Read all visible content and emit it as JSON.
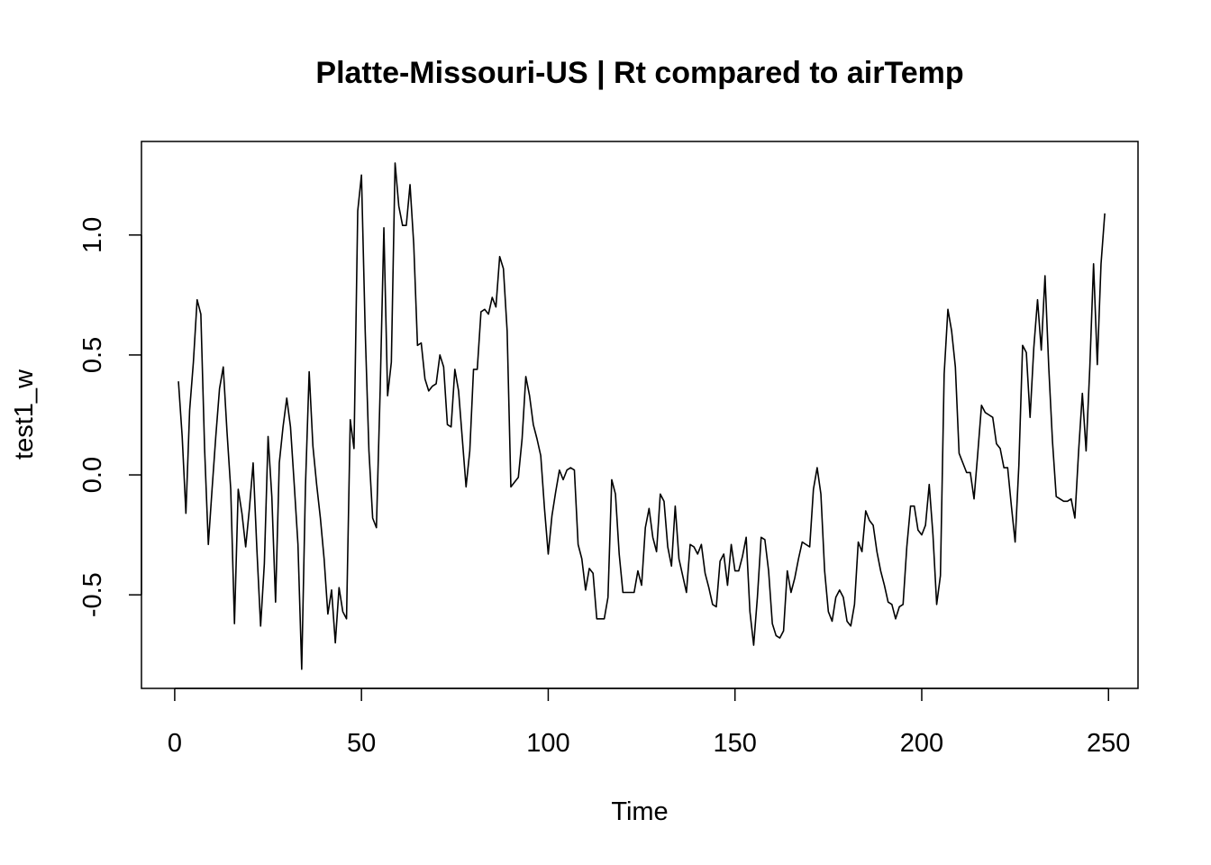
{
  "chart_data": {
    "type": "line",
    "title": "Platte-Missouri-US | Rt compared to airTemp",
    "xlabel": "Time",
    "ylabel": "test1_w",
    "xlim": [
      -8.9,
      257.9
    ],
    "ylim": [
      -0.89,
      1.39
    ],
    "xticks": [
      0,
      50,
      100,
      150,
      200,
      250
    ],
    "yticks": [
      -0.5,
      0.0,
      0.5,
      1.0
    ],
    "xtick_labels": [
      "0",
      "50",
      "100",
      "150",
      "200",
      "250"
    ],
    "ytick_labels": [
      "-0.5",
      "0.0",
      "0.5",
      "1.0"
    ],
    "grid": false,
    "legend": "none",
    "line_color": "#000000",
    "x_start": 1,
    "x_step": 1,
    "series": [
      {
        "values": [
          0.39,
          0.16,
          -0.16,
          0.27,
          0.47,
          0.73,
          0.67,
          0.11,
          -0.29,
          -0.06,
          0.16,
          0.36,
          0.45,
          0.18,
          -0.06,
          -0.62,
          -0.06,
          -0.16,
          -0.3,
          -0.14,
          0.05,
          -0.31,
          -0.63,
          -0.37,
          0.16,
          -0.09,
          -0.53,
          0.05,
          0.2,
          0.32,
          0.2,
          -0.04,
          -0.29,
          -0.81,
          -0.05,
          0.43,
          0.12,
          -0.04,
          -0.18,
          -0.35,
          -0.58,
          -0.48,
          -0.7,
          -0.47,
          -0.57,
          -0.6,
          0.23,
          0.11,
          1.1,
          1.25,
          0.6,
          0.1,
          -0.18,
          -0.22,
          0.35,
          1.03,
          0.33,
          0.47,
          1.3,
          1.12,
          1.04,
          1.04,
          1.21,
          0.96,
          0.54,
          0.55,
          0.4,
          0.35,
          0.37,
          0.38,
          0.5,
          0.45,
          0.21,
          0.2,
          0.44,
          0.35,
          0.15,
          -0.05,
          0.1,
          0.44,
          0.44,
          0.68,
          0.69,
          0.67,
          0.74,
          0.7,
          0.91,
          0.86,
          0.6,
          -0.05,
          -0.03,
          -0.01,
          0.15,
          0.41,
          0.33,
          0.21,
          0.15,
          0.08,
          -0.14,
          -0.33,
          -0.17,
          -0.07,
          0.02,
          -0.02,
          0.02,
          0.03,
          0.02,
          -0.29,
          -0.35,
          -0.48,
          -0.39,
          -0.41,
          -0.6,
          -0.6,
          -0.6,
          -0.51,
          -0.02,
          -0.08,
          -0.33,
          -0.49,
          -0.49,
          -0.49,
          -0.49,
          -0.4,
          -0.46,
          -0.22,
          -0.14,
          -0.26,
          -0.32,
          -0.08,
          -0.11,
          -0.3,
          -0.38,
          -0.13,
          -0.35,
          -0.42,
          -0.49,
          -0.29,
          -0.3,
          -0.33,
          -0.29,
          -0.41,
          -0.47,
          -0.54,
          -0.55,
          -0.36,
          -0.33,
          -0.46,
          -0.29,
          -0.4,
          -0.4,
          -0.34,
          -0.26,
          -0.57,
          -0.71,
          -0.51,
          -0.26,
          -0.27,
          -0.4,
          -0.62,
          -0.67,
          -0.68,
          -0.65,
          -0.4,
          -0.49,
          -0.43,
          -0.35,
          -0.28,
          -0.29,
          -0.3,
          -0.06,
          0.03,
          -0.08,
          -0.4,
          -0.57,
          -0.61,
          -0.51,
          -0.48,
          -0.51,
          -0.61,
          -0.63,
          -0.54,
          -0.28,
          -0.32,
          -0.15,
          -0.19,
          -0.21,
          -0.32,
          -0.4,
          -0.46,
          -0.53,
          -0.54,
          -0.6,
          -0.55,
          -0.54,
          -0.3,
          -0.13,
          -0.13,
          -0.23,
          -0.25,
          -0.21,
          -0.04,
          -0.25,
          -0.54,
          -0.42,
          0.42,
          0.69,
          0.6,
          0.45,
          0.09,
          0.05,
          0.01,
          0.01,
          -0.1,
          0.09,
          0.29,
          0.26,
          0.25,
          0.24,
          0.13,
          0.11,
          0.03,
          0.03,
          -0.13,
          -0.28,
          0.04,
          0.54,
          0.51,
          0.24,
          0.53,
          0.73,
          0.52,
          0.83,
          0.45,
          0.14,
          -0.09,
          -0.1,
          -0.11,
          -0.11,
          -0.1,
          -0.18,
          0.1,
          0.34,
          0.1,
          0.45,
          0.88,
          0.46,
          0.88,
          1.09
        ]
      }
    ]
  }
}
